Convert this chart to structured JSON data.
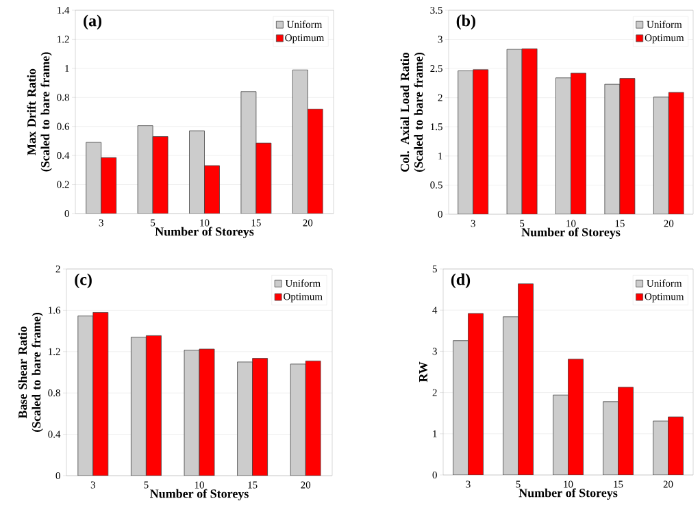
{
  "chart_data": [
    {
      "type": "bar",
      "annotations": [
        "(a)"
      ],
      "xlabel": "Number of Storeys",
      "ylabel": "Max Drift Ratio\n(Scaled to bare frame)",
      "categories": [
        "3",
        "5",
        "10",
        "15",
        "20"
      ],
      "series": [
        {
          "name": "Uniform",
          "color": "#cccccc",
          "values": [
            0.49,
            0.605,
            0.57,
            0.84,
            0.99
          ]
        },
        {
          "name": "Optimum",
          "color": "#ff0000",
          "values": [
            0.385,
            0.53,
            0.33,
            0.485,
            0.72
          ]
        }
      ],
      "ylim": [
        0,
        1.4
      ],
      "yticks": [
        0,
        0.2,
        0.4,
        0.6,
        0.8,
        1,
        1.2,
        1.4
      ],
      "grid": "y",
      "legend": "top right"
    },
    {
      "type": "bar",
      "annotations": [
        "(b)"
      ],
      "xlabel": "Number of Storeys",
      "ylabel": "Col. Axial Load Ratio\n(Scaled to bare frame)",
      "categories": [
        "3",
        "5",
        "10",
        "15",
        "20"
      ],
      "series": [
        {
          "name": "Uniform",
          "color": "#cccccc",
          "values": [
            2.46,
            2.83,
            2.34,
            2.23,
            2.01
          ]
        },
        {
          "name": "Optimum",
          "color": "#ff0000",
          "values": [
            2.48,
            2.84,
            2.42,
            2.33,
            2.09
          ]
        }
      ],
      "ylim": [
        0,
        3.5
      ],
      "yticks": [
        0,
        0.5,
        1,
        1.5,
        2,
        2.5,
        3,
        3.5
      ],
      "grid": "y",
      "legend": "top right"
    },
    {
      "type": "bar",
      "annotations": [
        "(c)"
      ],
      "xlabel": "Number of Storeys",
      "ylabel": "Base Shear Ratio\n(Scaled to bare frame)",
      "categories": [
        "3",
        "5",
        "10",
        "15",
        "20"
      ],
      "series": [
        {
          "name": "Uniform",
          "color": "#cccccc",
          "values": [
            1.545,
            1.34,
            1.215,
            1.1,
            1.08
          ]
        },
        {
          "name": "Optimum",
          "color": "#ff0000",
          "values": [
            1.58,
            1.355,
            1.225,
            1.135,
            1.11
          ]
        }
      ],
      "ylim": [
        0,
        2
      ],
      "yticks": [
        0,
        0.4,
        0.8,
        1.2,
        1.6,
        2
      ],
      "grid": "y",
      "legend": "top right"
    },
    {
      "type": "bar",
      "annotations": [
        "(d)"
      ],
      "xlabel": "Number of Storeys",
      "ylabel": "RW",
      "categories": [
        "3",
        "5",
        "10",
        "15",
        "20"
      ],
      "series": [
        {
          "name": "Uniform",
          "color": "#cccccc",
          "values": [
            3.26,
            3.84,
            1.94,
            1.78,
            1.31
          ]
        },
        {
          "name": "Optimum",
          "color": "#ff0000",
          "values": [
            3.92,
            4.64,
            2.81,
            2.13,
            1.41
          ]
        }
      ],
      "ylim": [
        0,
        5
      ],
      "yticks": [
        0,
        1,
        2,
        3,
        4,
        5
      ],
      "grid": "y",
      "legend": "top right"
    }
  ]
}
